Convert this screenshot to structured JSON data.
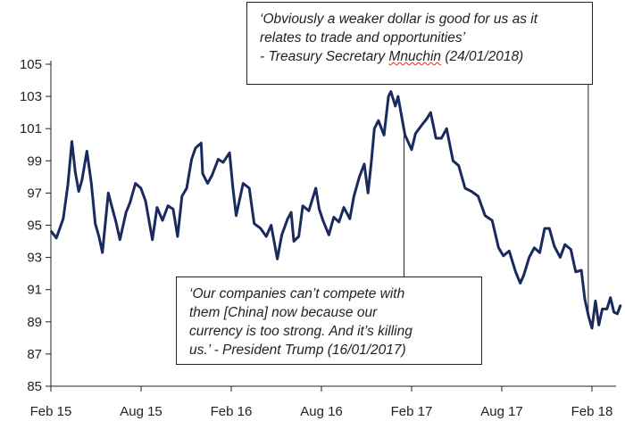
{
  "chart_data": {
    "type": "line",
    "title": "",
    "xlabel": "",
    "ylabel": "",
    "ylim": [
      85,
      105
    ],
    "yticks": [
      85,
      87,
      89,
      91,
      93,
      95,
      97,
      99,
      101,
      103,
      105
    ],
    "xticks": [
      "Feb 15",
      "Aug 15",
      "Feb 16",
      "Aug 16",
      "Feb 17",
      "Aug 17",
      "Feb 18"
    ],
    "grid": false,
    "line_color": "#1b2a5e",
    "series": [
      {
        "values": [
          {
            "x": "2015-02-02",
            "y": 94.6
          },
          {
            "x": "2015-02-12",
            "y": 94.2
          },
          {
            "x": "2015-02-26",
            "y": 95.4
          },
          {
            "x": "2015-03-05",
            "y": 97.5
          },
          {
            "x": "2015-03-13",
            "y": 100.2
          },
          {
            "x": "2015-03-20",
            "y": 98.3
          },
          {
            "x": "2015-03-27",
            "y": 97.1
          },
          {
            "x": "2015-04-03",
            "y": 97.8
          },
          {
            "x": "2015-04-13",
            "y": 99.6
          },
          {
            "x": "2015-04-22",
            "y": 97.6
          },
          {
            "x": "2015-04-30",
            "y": 95.1
          },
          {
            "x": "2015-05-07",
            "y": 94.3
          },
          {
            "x": "2015-05-14",
            "y": 93.3
          },
          {
            "x": "2015-05-26",
            "y": 97.0
          },
          {
            "x": "2015-06-04",
            "y": 96.0
          },
          {
            "x": "2015-06-11",
            "y": 95.2
          },
          {
            "x": "2015-06-19",
            "y": 94.1
          },
          {
            "x": "2015-07-01",
            "y": 95.8
          },
          {
            "x": "2015-07-09",
            "y": 96.4
          },
          {
            "x": "2015-07-20",
            "y": 97.6
          },
          {
            "x": "2015-07-31",
            "y": 97.3
          },
          {
            "x": "2015-08-10",
            "y": 96.5
          },
          {
            "x": "2015-08-24",
            "y": 94.1
          },
          {
            "x": "2015-09-03",
            "y": 96.1
          },
          {
            "x": "2015-09-14",
            "y": 95.3
          },
          {
            "x": "2015-09-25",
            "y": 96.2
          },
          {
            "x": "2015-10-05",
            "y": 96.0
          },
          {
            "x": "2015-10-14",
            "y": 94.3
          },
          {
            "x": "2015-10-23",
            "y": 96.8
          },
          {
            "x": "2015-11-02",
            "y": 97.3
          },
          {
            "x": "2015-11-12",
            "y": 99.1
          },
          {
            "x": "2015-11-20",
            "y": 99.8
          },
          {
            "x": "2015-12-01",
            "y": 100.1
          },
          {
            "x": "2015-12-04",
            "y": 98.2
          },
          {
            "x": "2015-12-14",
            "y": 97.6
          },
          {
            "x": "2015-12-23",
            "y": 98.1
          },
          {
            "x": "2016-01-05",
            "y": 99.1
          },
          {
            "x": "2016-01-15",
            "y": 98.9
          },
          {
            "x": "2016-01-28",
            "y": 99.5
          },
          {
            "x": "2016-02-04",
            "y": 97.4
          },
          {
            "x": "2016-02-11",
            "y": 95.6
          },
          {
            "x": "2016-02-25",
            "y": 97.6
          },
          {
            "x": "2016-03-07",
            "y": 97.3
          },
          {
            "x": "2016-03-17",
            "y": 95.1
          },
          {
            "x": "2016-03-30",
            "y": 94.8
          },
          {
            "x": "2016-04-11",
            "y": 94.3
          },
          {
            "x": "2016-04-21",
            "y": 95.0
          },
          {
            "x": "2016-05-03",
            "y": 92.9
          },
          {
            "x": "2016-05-12",
            "y": 94.4
          },
          {
            "x": "2016-05-24",
            "y": 95.4
          },
          {
            "x": "2016-05-31",
            "y": 95.8
          },
          {
            "x": "2016-06-06",
            "y": 94.0
          },
          {
            "x": "2016-06-16",
            "y": 94.3
          },
          {
            "x": "2016-06-24",
            "y": 96.2
          },
          {
            "x": "2016-07-06",
            "y": 95.9
          },
          {
            "x": "2016-07-20",
            "y": 97.3
          },
          {
            "x": "2016-07-27",
            "y": 96.0
          },
          {
            "x": "2016-08-04",
            "y": 95.3
          },
          {
            "x": "2016-08-16",
            "y": 94.4
          },
          {
            "x": "2016-08-26",
            "y": 95.5
          },
          {
            "x": "2016-09-06",
            "y": 95.2
          },
          {
            "x": "2016-09-16",
            "y": 96.1
          },
          {
            "x": "2016-09-28",
            "y": 95.4
          },
          {
            "x": "2016-10-06",
            "y": 96.8
          },
          {
            "x": "2016-10-17",
            "y": 98.0
          },
          {
            "x": "2016-10-27",
            "y": 98.8
          },
          {
            "x": "2016-11-04",
            "y": 97.0
          },
          {
            "x": "2016-11-11",
            "y": 99.0
          },
          {
            "x": "2016-11-17",
            "y": 101.0
          },
          {
            "x": "2016-11-25",
            "y": 101.5
          },
          {
            "x": "2016-12-06",
            "y": 100.6
          },
          {
            "x": "2016-12-15",
            "y": 103.0
          },
          {
            "x": "2016-12-20",
            "y": 103.3
          },
          {
            "x": "2016-12-29",
            "y": 102.4
          },
          {
            "x": "2017-01-04",
            "y": 103.0
          },
          {
            "x": "2017-01-11",
            "y": 101.8
          },
          {
            "x": "2017-01-18",
            "y": 100.6
          },
          {
            "x": "2017-01-24",
            "y": 100.2
          },
          {
            "x": "2017-02-01",
            "y": 99.7
          },
          {
            "x": "2017-02-09",
            "y": 100.7
          },
          {
            "x": "2017-02-21",
            "y": 101.2
          },
          {
            "x": "2017-03-01",
            "y": 101.6
          },
          {
            "x": "2017-03-09",
            "y": 102.0
          },
          {
            "x": "2017-03-20",
            "y": 100.4
          },
          {
            "x": "2017-03-31",
            "y": 100.4
          },
          {
            "x": "2017-04-11",
            "y": 101.0
          },
          {
            "x": "2017-04-24",
            "y": 99.0
          },
          {
            "x": "2017-05-05",
            "y": 98.7
          },
          {
            "x": "2017-05-18",
            "y": 97.3
          },
          {
            "x": "2017-05-31",
            "y": 97.1
          },
          {
            "x": "2017-06-14",
            "y": 96.8
          },
          {
            "x": "2017-06-28",
            "y": 95.6
          },
          {
            "x": "2017-07-12",
            "y": 95.3
          },
          {
            "x": "2017-07-25",
            "y": 93.6
          },
          {
            "x": "2017-08-04",
            "y": 93.1
          },
          {
            "x": "2017-08-16",
            "y": 93.4
          },
          {
            "x": "2017-08-29",
            "y": 92.1
          },
          {
            "x": "2017-09-08",
            "y": 91.4
          },
          {
            "x": "2017-09-15",
            "y": 91.9
          },
          {
            "x": "2017-09-26",
            "y": 93.0
          },
          {
            "x": "2017-10-06",
            "y": 93.6
          },
          {
            "x": "2017-10-17",
            "y": 93.3
          },
          {
            "x": "2017-10-27",
            "y": 94.8
          },
          {
            "x": "2017-11-06",
            "y": 94.8
          },
          {
            "x": "2017-11-16",
            "y": 93.7
          },
          {
            "x": "2017-11-28",
            "y": 93.0
          },
          {
            "x": "2017-12-07",
            "y": 93.8
          },
          {
            "x": "2017-12-19",
            "y": 93.5
          },
          {
            "x": "2017-12-29",
            "y": 92.1
          },
          {
            "x": "2018-01-10",
            "y": 92.2
          },
          {
            "x": "2018-01-17",
            "y": 90.4
          },
          {
            "x": "2018-01-25",
            "y": 89.3
          },
          {
            "x": "2018-02-01",
            "y": 88.6
          },
          {
            "x": "2018-02-08",
            "y": 90.3
          },
          {
            "x": "2018-02-15",
            "y": 88.8
          },
          {
            "x": "2018-02-22",
            "y": 89.8
          },
          {
            "x": "2018-03-01",
            "y": 89.8
          },
          {
            "x": "2018-03-08",
            "y": 90.5
          },
          {
            "x": "2018-03-15",
            "y": 89.6
          },
          {
            "x": "2018-03-22",
            "y": 89.5
          },
          {
            "x": "2018-03-28",
            "y": 90.0
          }
        ]
      }
    ],
    "annotations": [
      {
        "id": "mnuchin",
        "lines": [
          "‘Obviously a weaker dollar is good for us as it",
          "relates to trade and opportunities’",
          "- Treasury Secretary "
        ],
        "underlined_word": "Mnuchin",
        "tail": " (24/01/2018)",
        "date": "2018-01-24"
      },
      {
        "id": "trump",
        "lines": [
          "‘Our companies can’t compete with",
          "them [China] now because our",
          "currency is too strong. And it’s killing",
          "us.’ - President Trump (16/01/2017)"
        ],
        "date": "2017-01-16"
      }
    ]
  }
}
